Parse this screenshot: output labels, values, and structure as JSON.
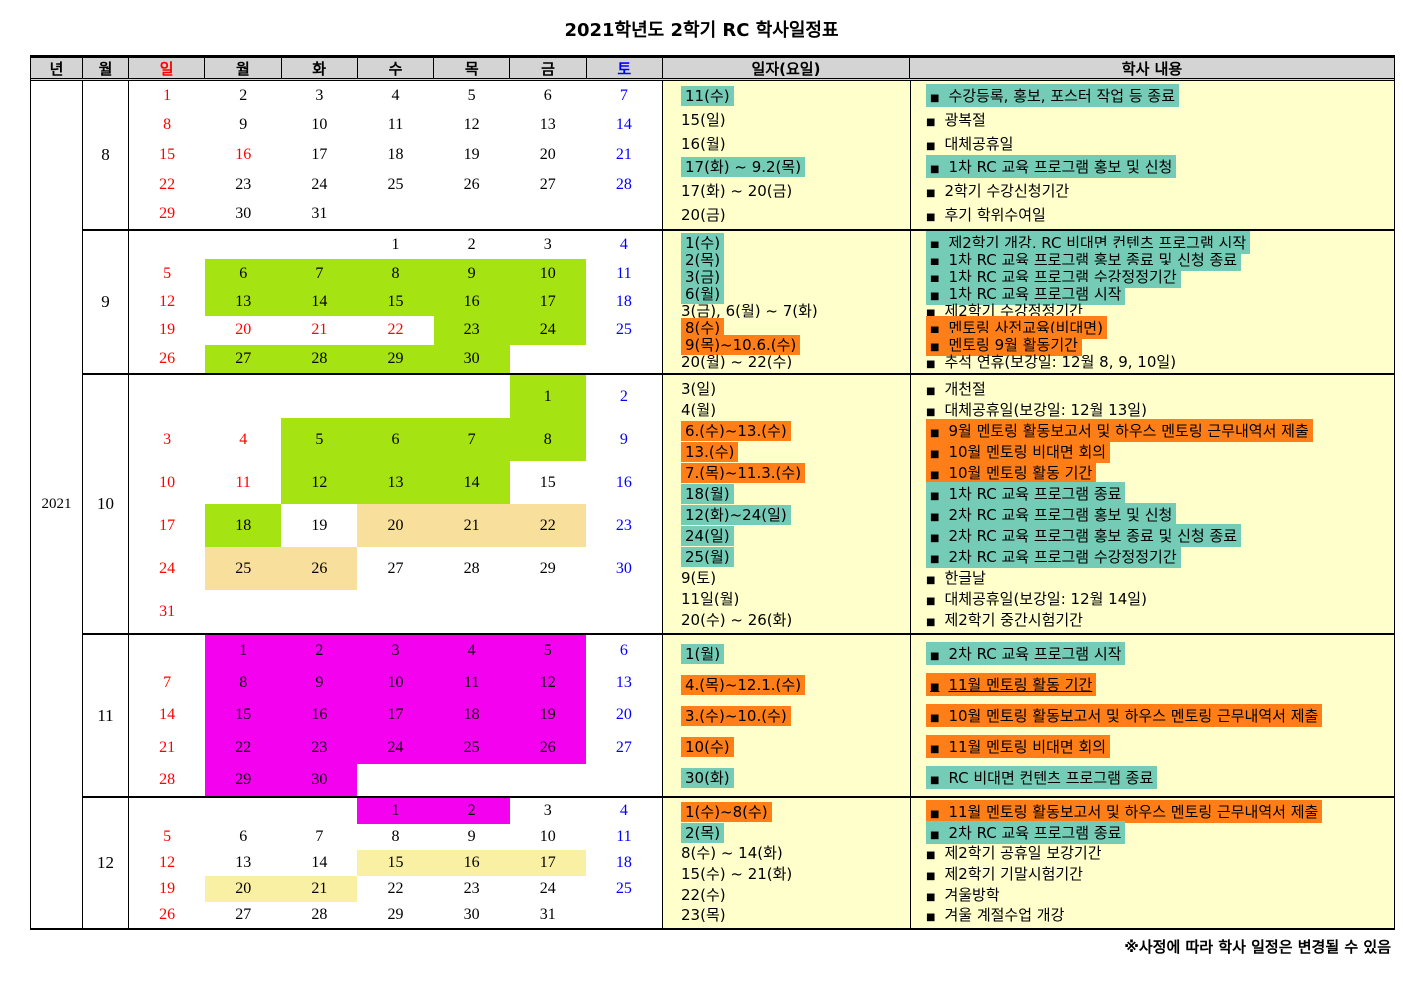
{
  "title": "2021학년도 2학기 RC 학사일정표",
  "footer_note": "※사정에 따라 학사 일정은 변경될 수 있음",
  "year": "2021",
  "bullet": "■",
  "headers": {
    "year": "년",
    "month": "월",
    "days": [
      "일",
      "월",
      "화",
      "수",
      "목",
      "금",
      "토"
    ],
    "date": "일자(요일)",
    "content": "학사 내용"
  },
  "colors": {
    "header_bg": "#D4D4D4",
    "panel_bg": "#FFFFCC",
    "teal": "#74CBB6",
    "orange": "#FF7E17",
    "green": "#A6E312",
    "magenta": "#F401F0",
    "tan": "#F8DF9B",
    "tan2": "#FAF0A3",
    "sun": "#FF0000",
    "sat": "#0000FF"
  },
  "months": [
    {
      "month": "8",
      "weeks": [
        [
          {
            "d": "1",
            "t": "sun"
          },
          {
            "d": "2"
          },
          {
            "d": "3"
          },
          {
            "d": "4"
          },
          {
            "d": "5"
          },
          {
            "d": "6"
          },
          {
            "d": "7",
            "t": "sat"
          }
        ],
        [
          {
            "d": "8",
            "t": "sun"
          },
          {
            "d": "9"
          },
          {
            "d": "10"
          },
          {
            "d": "11"
          },
          {
            "d": "12"
          },
          {
            "d": "13"
          },
          {
            "d": "14",
            "t": "sat"
          }
        ],
        [
          {
            "d": "15",
            "t": "sun"
          },
          {
            "d": "16",
            "t": "sun"
          },
          {
            "d": "17"
          },
          {
            "d": "18"
          },
          {
            "d": "19"
          },
          {
            "d": "20"
          },
          {
            "d": "21",
            "t": "sat"
          }
        ],
        [
          {
            "d": "22",
            "t": "sun"
          },
          {
            "d": "23"
          },
          {
            "d": "24"
          },
          {
            "d": "25"
          },
          {
            "d": "26"
          },
          {
            "d": "27"
          },
          {
            "d": "28",
            "t": "sat"
          }
        ],
        [
          {
            "d": "29",
            "t": "sun"
          },
          {
            "d": "30"
          },
          {
            "d": "31"
          },
          null,
          null,
          null,
          null
        ]
      ],
      "entries": [
        {
          "date": "11(수)",
          "date_hl": "teal",
          "content": "수강등록, 홍보, 포스터 작업 등 종료",
          "content_hl": "teal"
        },
        {
          "date": "15(일)",
          "date_hl": null,
          "content": "광복절",
          "content_hl": null
        },
        {
          "date": "16(월)",
          "date_hl": null,
          "content": "대체공휴일",
          "content_hl": null
        },
        {
          "date": "17(화) ~ 9.2(목)",
          "date_hl": "teal",
          "content": "1차 RC 교육 프로그램 홍보 및 신청",
          "content_hl": "teal"
        },
        {
          "date": "17(화) ~ 20(금)",
          "date_hl": null,
          "content": "2학기 수강신청기간",
          "content_hl": null
        },
        {
          "date": "20(금)",
          "date_hl": null,
          "content": "후기 학위수여일",
          "content_hl": null
        }
      ]
    },
    {
      "month": "9",
      "weeks": [
        [
          null,
          null,
          null,
          {
            "d": "1"
          },
          {
            "d": "2"
          },
          {
            "d": "3"
          },
          {
            "d": "4",
            "t": "sat"
          }
        ],
        [
          {
            "d": "5",
            "t": "sun"
          },
          {
            "d": "6",
            "bg": "green"
          },
          {
            "d": "7",
            "bg": "green"
          },
          {
            "d": "8",
            "bg": "green"
          },
          {
            "d": "9",
            "bg": "green"
          },
          {
            "d": "10",
            "bg": "green"
          },
          {
            "d": "11",
            "t": "sat"
          }
        ],
        [
          {
            "d": "12",
            "t": "sun"
          },
          {
            "d": "13",
            "bg": "green"
          },
          {
            "d": "14",
            "bg": "green"
          },
          {
            "d": "15",
            "bg": "green"
          },
          {
            "d": "16",
            "bg": "green"
          },
          {
            "d": "17",
            "bg": "green"
          },
          {
            "d": "18",
            "t": "sat"
          }
        ],
        [
          {
            "d": "19",
            "t": "sun"
          },
          {
            "d": "20",
            "t": "sun"
          },
          {
            "d": "21",
            "t": "sun"
          },
          {
            "d": "22",
            "t": "sun"
          },
          {
            "d": "23",
            "bg": "green"
          },
          {
            "d": "24",
            "bg": "green"
          },
          {
            "d": "25",
            "t": "sat"
          }
        ],
        [
          {
            "d": "26",
            "t": "sun"
          },
          {
            "d": "27",
            "bg": "green"
          },
          {
            "d": "28",
            "bg": "green"
          },
          {
            "d": "29",
            "bg": "green"
          },
          {
            "d": "30",
            "bg": "green"
          },
          null,
          null
        ]
      ],
      "entries": [
        {
          "date": "1(수)",
          "date_hl": "teal",
          "content": "제2학기 개강, RC 비대면 컨텐츠 프로그램 시작",
          "content_hl": "teal"
        },
        {
          "date": "2(목)",
          "date_hl": "teal",
          "content": "1차 RC 교육 프로그램 홍보 종료 및 신청 종료",
          "content_hl": "teal"
        },
        {
          "date": "3(금)",
          "date_hl": "teal",
          "content": "1차 RC 교육 프로그램 수강정정기간",
          "content_hl": "teal"
        },
        {
          "date": "6(월)",
          "date_hl": "teal",
          "content": "1차 RC 교육 프로그램 시작",
          "content_hl": "teal"
        },
        {
          "date": "3(금), 6(월) ~ 7(화)",
          "date_hl": null,
          "content": "제2학기 수강정정기간",
          "content_hl": null
        },
        {
          "date": "8(수)",
          "date_hl": "orange",
          "content": "멘토링 사전교육(비대면)",
          "content_hl": "orange"
        },
        {
          "date": "9(목)~10.6.(수)",
          "date_hl": "orange",
          "content": "멘토링 9월 활동기간",
          "content_hl": "orange"
        },
        {
          "date": "20(월) ~ 22(수)",
          "date_hl": null,
          "content": "추석 연휴(보강일: 12월 8, 9, 10일)",
          "content_hl": null
        }
      ]
    },
    {
      "month": "10",
      "weeks": [
        [
          null,
          null,
          null,
          null,
          null,
          {
            "d": "1",
            "bg": "green"
          },
          {
            "d": "2",
            "t": "sat"
          }
        ],
        [
          {
            "d": "3",
            "t": "sun"
          },
          {
            "d": "4",
            "t": "sun"
          },
          {
            "d": "5",
            "bg": "green"
          },
          {
            "d": "6",
            "bg": "green"
          },
          {
            "d": "7",
            "bg": "green"
          },
          {
            "d": "8",
            "bg": "green"
          },
          {
            "d": "9",
            "t": "sat"
          }
        ],
        [
          {
            "d": "10",
            "t": "sun"
          },
          {
            "d": "11",
            "t": "sun"
          },
          {
            "d": "12",
            "bg": "green"
          },
          {
            "d": "13",
            "bg": "green"
          },
          {
            "d": "14",
            "bg": "green"
          },
          {
            "d": "15"
          },
          {
            "d": "16",
            "t": "sat"
          }
        ],
        [
          {
            "d": "17",
            "t": "sun"
          },
          {
            "d": "18",
            "bg": "green"
          },
          {
            "d": "19"
          },
          {
            "d": "20",
            "bg": "tan"
          },
          {
            "d": "21",
            "bg": "tan"
          },
          {
            "d": "22",
            "bg": "tan"
          },
          {
            "d": "23",
            "t": "sat"
          }
        ],
        [
          {
            "d": "24",
            "t": "sun"
          },
          {
            "d": "25",
            "bg": "tan"
          },
          {
            "d": "26",
            "bg": "tan"
          },
          {
            "d": "27"
          },
          {
            "d": "28"
          },
          {
            "d": "29"
          },
          {
            "d": "30",
            "t": "sat"
          }
        ],
        [
          {
            "d": "31",
            "t": "sun"
          },
          null,
          null,
          null,
          null,
          null,
          null
        ]
      ],
      "entries": [
        {
          "date": "3(일)",
          "date_hl": null,
          "content": "개천절",
          "content_hl": null
        },
        {
          "date": "4(월)",
          "date_hl": null,
          "content": "대체공휴일(보강일: 12월 13일)",
          "content_hl": null
        },
        {
          "date": "6.(수)~13.(수)",
          "date_hl": "orange",
          "content": "9월 멘토링 활동보고서 및 하우스 멘토링 근무내역서 제출",
          "content_hl": "orange"
        },
        {
          "date": "13.(수)",
          "date_hl": "orange",
          "content": "10월 멘토링 비대면 회의",
          "content_hl": "orange"
        },
        {
          "date": "7.(목)~11.3.(수)",
          "date_hl": "orange",
          "content": "10월 멘토링 활동 기간",
          "content_hl": "orange"
        },
        {
          "date": "18(월)",
          "date_hl": "teal",
          "content": "1차 RC 교육 프로그램 종료",
          "content_hl": "teal"
        },
        {
          "date": "12(화)~24(일)",
          "date_hl": "teal",
          "content": "2차 RC 교육 프로그램 홍보 및 신청",
          "content_hl": "teal"
        },
        {
          "date": "24(일)",
          "date_hl": "teal",
          "content": "2차 RC 교육 프로그램 홍보 종료 및 신청 종료",
          "content_hl": "teal"
        },
        {
          "date": "25(월)",
          "date_hl": "teal",
          "content": "2차 RC 교육 프로그램 수강정정기간",
          "content_hl": "teal"
        },
        {
          "date": "9(토)",
          "date_hl": null,
          "content": "한글날",
          "content_hl": null
        },
        {
          "date": "11일(월)",
          "date_hl": null,
          "content": "대체공휴일(보강일: 12월 14일)",
          "content_hl": null
        },
        {
          "date": "20(수) ~ 26(화)",
          "date_hl": null,
          "content": "제2학기 중간시험기간",
          "content_hl": null
        }
      ]
    },
    {
      "month": "11",
      "weeks": [
        [
          null,
          {
            "d": "1",
            "bg": "magenta"
          },
          {
            "d": "2",
            "bg": "magenta"
          },
          {
            "d": "3",
            "bg": "magenta"
          },
          {
            "d": "4",
            "bg": "magenta"
          },
          {
            "d": "5",
            "bg": "magenta"
          },
          {
            "d": "6",
            "t": "sat"
          }
        ],
        [
          {
            "d": "7",
            "t": "sun"
          },
          {
            "d": "8",
            "bg": "magenta"
          },
          {
            "d": "9",
            "bg": "magenta"
          },
          {
            "d": "10",
            "bg": "magenta"
          },
          {
            "d": "11",
            "bg": "magenta"
          },
          {
            "d": "12",
            "bg": "magenta"
          },
          {
            "d": "13",
            "t": "sat"
          }
        ],
        [
          {
            "d": "14",
            "t": "sun"
          },
          {
            "d": "15",
            "bg": "magenta"
          },
          {
            "d": "16",
            "bg": "magenta"
          },
          {
            "d": "17",
            "bg": "magenta"
          },
          {
            "d": "18",
            "bg": "magenta"
          },
          {
            "d": "19",
            "bg": "magenta"
          },
          {
            "d": "20",
            "t": "sat"
          }
        ],
        [
          {
            "d": "21",
            "t": "sun"
          },
          {
            "d": "22",
            "bg": "magenta"
          },
          {
            "d": "23",
            "bg": "magenta"
          },
          {
            "d": "24",
            "bg": "magenta"
          },
          {
            "d": "25",
            "bg": "magenta"
          },
          {
            "d": "26",
            "bg": "magenta"
          },
          {
            "d": "27",
            "t": "sat"
          }
        ],
        [
          {
            "d": "28",
            "t": "sun"
          },
          {
            "d": "29",
            "bg": "magenta"
          },
          {
            "d": "30",
            "bg": "magenta"
          },
          null,
          null,
          null,
          null
        ]
      ],
      "entries": [
        {
          "date": "1(월)",
          "date_hl": "teal",
          "content": "2차 RC 교육 프로그램 시작",
          "content_hl": "teal"
        },
        {
          "date": "4.(목)~12.1.(수)",
          "date_hl": "orange",
          "content": "11월 멘토링 활동 기간",
          "content_hl": "orange",
          "underline": true
        },
        {
          "date": "3.(수)~10.(수)",
          "date_hl": "orange",
          "content": "10월 멘토링 활동보고서 및 하우스 멘토링 근무내역서 제출",
          "content_hl": "orange"
        },
        {
          "date": "10(수)",
          "date_hl": "orange",
          "content": "11월 멘토링 비대면 회의",
          "content_hl": "orange"
        },
        {
          "date": "30(화)",
          "date_hl": "teal",
          "content": "RC 비대면 컨텐츠 프로그램 종료",
          "content_hl": "teal"
        }
      ]
    },
    {
      "month": "12",
      "weeks": [
        [
          null,
          null,
          null,
          {
            "d": "1",
            "bg": "magenta"
          },
          {
            "d": "2",
            "bg": "magenta"
          },
          {
            "d": "3"
          },
          {
            "d": "4",
            "t": "sat"
          }
        ],
        [
          {
            "d": "5",
            "t": "sun"
          },
          {
            "d": "6"
          },
          {
            "d": "7"
          },
          {
            "d": "8"
          },
          {
            "d": "9"
          },
          {
            "d": "10"
          },
          {
            "d": "11",
            "t": "sat"
          }
        ],
        [
          {
            "d": "12",
            "t": "sun"
          },
          {
            "d": "13"
          },
          {
            "d": "14"
          },
          {
            "d": "15",
            "bg": "tan2"
          },
          {
            "d": "16",
            "bg": "tan2"
          },
          {
            "d": "17",
            "bg": "tan2"
          },
          {
            "d": "18",
            "t": "sat"
          }
        ],
        [
          {
            "d": "19",
            "t": "sun"
          },
          {
            "d": "20",
            "bg": "tan2"
          },
          {
            "d": "21",
            "bg": "tan2"
          },
          {
            "d": "22"
          },
          {
            "d": "23"
          },
          {
            "d": "24"
          },
          {
            "d": "25",
            "t": "sat"
          }
        ],
        [
          {
            "d": "26",
            "t": "sun"
          },
          {
            "d": "27"
          },
          {
            "d": "28"
          },
          {
            "d": "29"
          },
          {
            "d": "30"
          },
          {
            "d": "31"
          },
          null
        ]
      ],
      "entries": [
        {
          "date": "1(수)~8(수)",
          "date_hl": "orange",
          "content": "11월 멘토링 활동보고서 및 하우스 멘토링 근무내역서 제출",
          "content_hl": "orange"
        },
        {
          "date": "2(목)",
          "date_hl": "teal",
          "content": "2차 RC 교육 프로그램 종료",
          "content_hl": "teal"
        },
        {
          "date": "8(수) ~ 14(화)",
          "date_hl": null,
          "content": "제2학기 공휴일 보강기간",
          "content_hl": null
        },
        {
          "date": "15(수) ~ 21(화)",
          "date_hl": null,
          "content": "제2학기 기말시험기간",
          "content_hl": null
        },
        {
          "date": "22(수)",
          "date_hl": null,
          "content": "겨울방학",
          "content_hl": null
        },
        {
          "date": "23(목)",
          "date_hl": null,
          "content": "겨울 계절수업 개강",
          "content_hl": null
        }
      ]
    }
  ]
}
